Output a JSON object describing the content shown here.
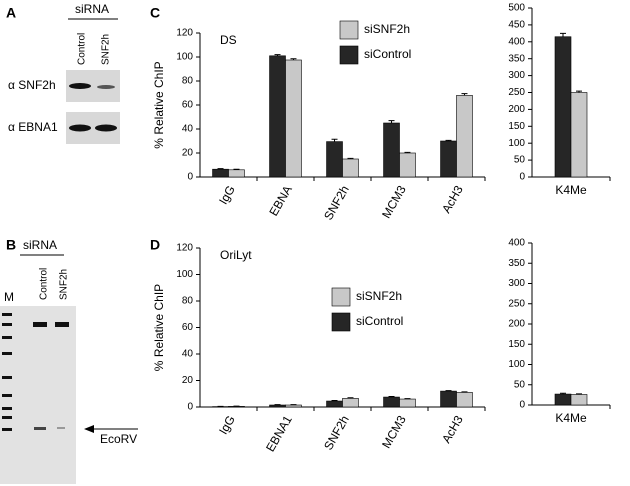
{
  "panels": {
    "letters": [
      "A",
      "B",
      "C",
      "D"
    ],
    "A": {
      "group": "siRNA",
      "lanes": [
        "Control",
        "SNF2h"
      ],
      "rows": [
        "α SNF2h",
        "α EBNA1"
      ]
    },
    "B": {
      "group": "siRNA",
      "lanes": [
        "Control",
        "SNF2h"
      ],
      "marker": "M",
      "arrow_label": "EcoRV"
    }
  },
  "chart_data": [
    {
      "type": "bar",
      "annotation": "DS",
      "ylabel": "% Relative ChIP",
      "categories": [
        "IgG",
        "EBNA",
        "SNF2h",
        "MCM3",
        "AcH3"
      ],
      "series": [
        {
          "name": "siControl",
          "color": "#262626",
          "values": [
            6.5,
            101,
            29.5,
            45,
            30
          ],
          "errors": [
            0.5,
            1,
            2,
            2,
            0.5
          ]
        },
        {
          "name": "siSNF2h",
          "color": "#c8c8c8",
          "values": [
            6,
            97.5,
            15,
            20,
            68
          ],
          "errors": [
            0.5,
            1,
            0.5,
            0.5,
            1.5
          ]
        }
      ],
      "ylim": [
        0,
        120
      ],
      "yticks": [
        0,
        20,
        40,
        60,
        80,
        100,
        120
      ],
      "legend": true
    },
    {
      "type": "bar",
      "categories": [
        "K4Me"
      ],
      "series": [
        {
          "name": "siControl",
          "color": "#262626",
          "values": [
            415
          ],
          "errors": [
            10
          ]
        },
        {
          "name": "siSNF2h",
          "color": "#c8c8c8",
          "values": [
            250
          ],
          "errors": [
            4
          ]
        }
      ],
      "ylim": [
        0,
        500
      ],
      "yticks": [
        0,
        50,
        100,
        150,
        200,
        250,
        300,
        350,
        400,
        450,
        500
      ],
      "legend": false
    },
    {
      "type": "bar",
      "annotation": "OriLyt",
      "ylabel": "% Relative ChIP",
      "categories": [
        "IgG",
        "EBNA1",
        "SNF2h",
        "MCM3",
        "AcH3"
      ],
      "series": [
        {
          "name": "siControl",
          "color": "#262626",
          "values": [
            0.3,
            1.5,
            4.5,
            7.5,
            12
          ],
          "errors": [
            0.2,
            0.3,
            0.4,
            0.4,
            0.4
          ]
        },
        {
          "name": "siSNF2h",
          "color": "#c8c8c8",
          "values": [
            0.5,
            1.5,
            6.5,
            6,
            11
          ],
          "errors": [
            0.2,
            0.3,
            0.5,
            0.3,
            0.4
          ]
        }
      ],
      "ylim": [
        0,
        120
      ],
      "yticks": [
        0,
        20,
        40,
        60,
        80,
        100,
        120
      ],
      "legend": true
    },
    {
      "type": "bar",
      "categories": [
        "K4Me"
      ],
      "series": [
        {
          "name": "siControl",
          "color": "#262626",
          "values": [
            27
          ],
          "errors": [
            2
          ]
        },
        {
          "name": "siSNF2h",
          "color": "#c8c8c8",
          "values": [
            26
          ],
          "errors": [
            1.5
          ]
        }
      ],
      "ylim": [
        0,
        400
      ],
      "yticks": [
        0,
        50,
        100,
        150,
        200,
        250,
        300,
        350,
        400
      ],
      "legend": false
    }
  ]
}
